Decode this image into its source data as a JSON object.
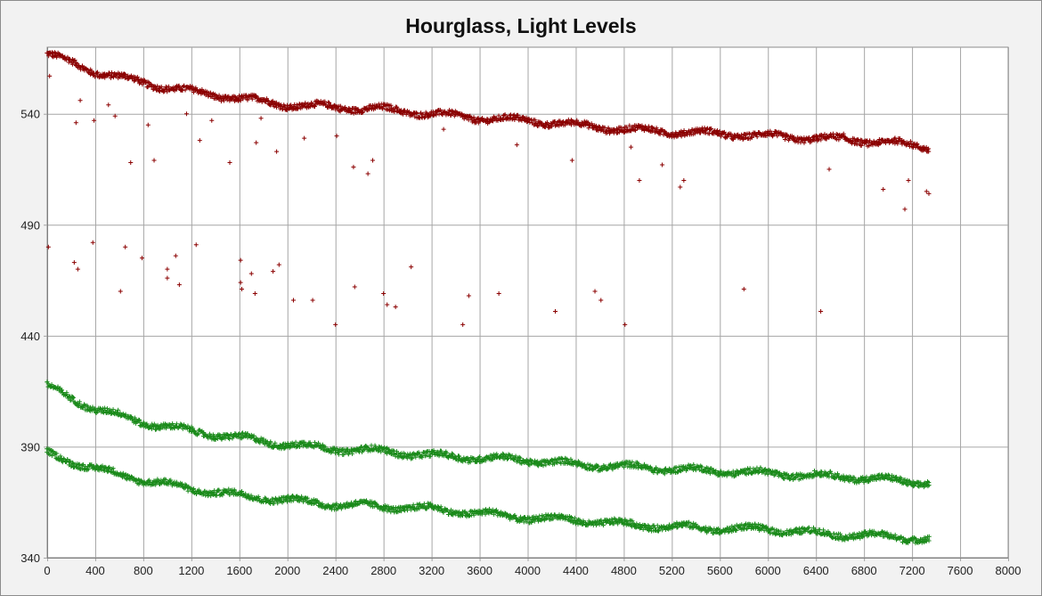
{
  "chart_data": {
    "type": "scatter",
    "title": "Hourglass,  Light Levels",
    "xlabel": "",
    "ylabel": "",
    "xlim": [
      0,
      8000
    ],
    "ylim": [
      340,
      570
    ],
    "x_ticks": [
      0,
      400,
      800,
      1200,
      1600,
      2000,
      2400,
      2800,
      3200,
      3600,
      4000,
      4400,
      4800,
      5200,
      5600,
      6000,
      6400,
      6800,
      7200,
      7600,
      8000
    ],
    "y_ticks": [
      340,
      390,
      440,
      490,
      540
    ],
    "grid": true,
    "legend": "none",
    "marker": "+",
    "colors": {
      "series_red": "#8b0000",
      "series_green": "#1a8a1a",
      "grid": "#a6a6a6",
      "plot_bg": "#ffffff"
    },
    "series": [
      {
        "color": "#8b0000",
        "trend": [
          [
            0,
            567
          ],
          [
            400,
            559
          ],
          [
            800,
            554
          ],
          [
            1200,
            550
          ],
          [
            1600,
            547
          ],
          [
            2000,
            544
          ],
          [
            2400,
            543
          ],
          [
            2800,
            542
          ],
          [
            3200,
            540
          ],
          [
            3600,
            538
          ],
          [
            4000,
            537
          ],
          [
            4400,
            535
          ],
          [
            4800,
            533
          ],
          [
            5200,
            532
          ],
          [
            5600,
            531
          ],
          [
            6000,
            530
          ],
          [
            6400,
            529
          ],
          [
            6800,
            528
          ],
          [
            7200,
            526
          ],
          [
            7340,
            525
          ]
        ],
        "outliers": [
          [
            10,
            480
          ],
          [
            20,
            557
          ],
          [
            225,
            473
          ],
          [
            240,
            536
          ],
          [
            255,
            470
          ],
          [
            275,
            546
          ],
          [
            380,
            482
          ],
          [
            390,
            537
          ],
          [
            510,
            544
          ],
          [
            565,
            539
          ],
          [
            610,
            460
          ],
          [
            650,
            480
          ],
          [
            695,
            518
          ],
          [
            790,
            475
          ],
          [
            840,
            535
          ],
          [
            890,
            519
          ],
          [
            1000,
            470
          ],
          [
            1000,
            466
          ],
          [
            1070,
            476
          ],
          [
            1100,
            463
          ],
          [
            1160,
            540
          ],
          [
            1240,
            481
          ],
          [
            1270,
            528
          ],
          [
            1370,
            537
          ],
          [
            1520,
            518
          ],
          [
            1610,
            474
          ],
          [
            1610,
            464
          ],
          [
            1620,
            461
          ],
          [
            1700,
            468
          ],
          [
            1730,
            459
          ],
          [
            1740,
            527
          ],
          [
            1780,
            538
          ],
          [
            1880,
            469
          ],
          [
            1910,
            523
          ],
          [
            1930,
            472
          ],
          [
            2050,
            456
          ],
          [
            2140,
            529
          ],
          [
            2210,
            456
          ],
          [
            2400,
            445
          ],
          [
            2410,
            530
          ],
          [
            2550,
            516
          ],
          [
            2560,
            462
          ],
          [
            2670,
            513
          ],
          [
            2710,
            519
          ],
          [
            2800,
            459
          ],
          [
            2830,
            454
          ],
          [
            2900,
            453
          ],
          [
            3030,
            471
          ],
          [
            3300,
            533
          ],
          [
            3460,
            445
          ],
          [
            3510,
            458
          ],
          [
            3760,
            459
          ],
          [
            3910,
            526
          ],
          [
            4230,
            451
          ],
          [
            4370,
            519
          ],
          [
            4560,
            460
          ],
          [
            4610,
            456
          ],
          [
            4810,
            445
          ],
          [
            4860,
            525
          ],
          [
            4930,
            510
          ],
          [
            5120,
            517
          ],
          [
            5270,
            507
          ],
          [
            5300,
            510
          ],
          [
            5800,
            461
          ],
          [
            6440,
            451
          ],
          [
            6510,
            515
          ],
          [
            6630,
            531
          ],
          [
            6960,
            506
          ],
          [
            7140,
            497
          ],
          [
            7170,
            510
          ],
          [
            7320,
            505
          ],
          [
            7340,
            504
          ]
        ]
      },
      {
        "color": "#1a8a1a",
        "trend": [
          [
            0,
            417
          ],
          [
            400,
            407
          ],
          [
            800,
            401
          ],
          [
            1200,
            397
          ],
          [
            1600,
            394
          ],
          [
            2000,
            391
          ],
          [
            2400,
            389
          ],
          [
            2800,
            388
          ],
          [
            3200,
            386
          ],
          [
            3600,
            385
          ],
          [
            4000,
            384
          ],
          [
            4400,
            382
          ],
          [
            4800,
            381
          ],
          [
            5200,
            380
          ],
          [
            5600,
            379
          ],
          [
            6000,
            378
          ],
          [
            6400,
            377
          ],
          [
            6800,
            376
          ],
          [
            7200,
            374
          ],
          [
            7340,
            374
          ]
        ],
        "outliers": []
      },
      {
        "color": "#1a8a1a",
        "trend": [
          [
            0,
            387
          ],
          [
            400,
            380
          ],
          [
            800,
            375
          ],
          [
            1200,
            371
          ],
          [
            1600,
            368
          ],
          [
            2000,
            366
          ],
          [
            2400,
            364
          ],
          [
            2800,
            363
          ],
          [
            3200,
            362
          ],
          [
            3600,
            360
          ],
          [
            4000,
            358
          ],
          [
            4400,
            357
          ],
          [
            4800,
            355
          ],
          [
            5200,
            354
          ],
          [
            5600,
            353
          ],
          [
            6000,
            353
          ],
          [
            6400,
            351
          ],
          [
            6800,
            350
          ],
          [
            7200,
            349
          ],
          [
            7340,
            348
          ]
        ],
        "outliers": []
      }
    ]
  }
}
